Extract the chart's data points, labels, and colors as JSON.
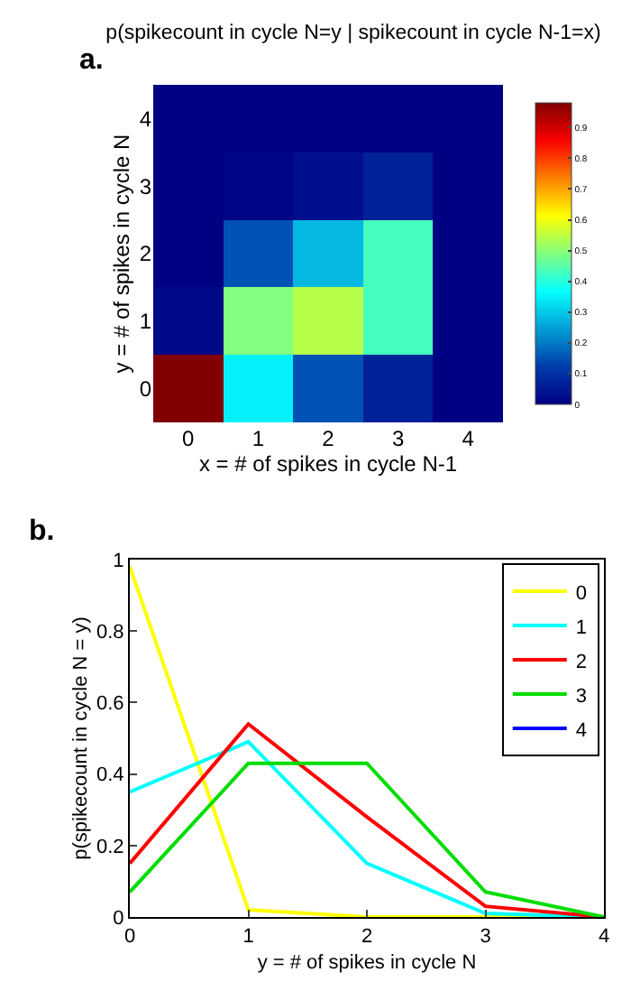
{
  "chart_data": [
    {
      "type": "heatmap",
      "title": "p(spikecount in cycle N=y | spikecount in cycle N-1=x)",
      "xlabel": "x = # of spikes in cycle N-1",
      "ylabel": "y = # of spikes in cycle N",
      "annotations": [
        "a."
      ],
      "categories": [
        "0",
        "1",
        "2",
        "3",
        "4"
      ],
      "y_categories": [
        "4",
        "3",
        "2",
        "1",
        "0"
      ],
      "cells": [
        [
          0,
          0,
          0,
          0,
          0
        ],
        [
          0,
          0.01,
          0.03,
          0.07,
          0
        ],
        [
          0,
          0.15,
          0.28,
          0.43,
          0
        ],
        [
          0.02,
          0.49,
          0.54,
          0.43,
          0
        ],
        [
          0.98,
          0.35,
          0.15,
          0.07,
          0
        ]
      ],
      "clim": [
        0,
        0.98
      ],
      "cticks": [
        0,
        0.1,
        0.2,
        0.3,
        0.4,
        0.5,
        0.6,
        0.7,
        0.8,
        0.9
      ]
    },
    {
      "type": "line",
      "xlabel": "y = # of spikes in cycle N",
      "ylabel": "p(spikecount in cycle N = y)",
      "annotations": [
        "b."
      ],
      "x": [
        0,
        1,
        2,
        3,
        4
      ],
      "xlim": [
        0,
        4
      ],
      "xticks": [
        0,
        1,
        2,
        3,
        4
      ],
      "ylim": [
        0,
        1
      ],
      "yticks": [
        0,
        0.2,
        0.4,
        0.6,
        0.8,
        1
      ],
      "grid": false,
      "legend": "top right",
      "series": [
        {
          "name": "0",
          "color": "#ffff00",
          "values": [
            0.98,
            0.02,
            0,
            0,
            0
          ]
        },
        {
          "name": "1",
          "color": "#00ffff",
          "values": [
            0.35,
            0.49,
            0.15,
            0.01,
            0
          ]
        },
        {
          "name": "2",
          "color": "#ff0000",
          "values": [
            0.15,
            0.54,
            0.28,
            0.03,
            0
          ]
        },
        {
          "name": "3",
          "color": "#00dd00",
          "values": [
            0.07,
            0.43,
            0.43,
            0.07,
            0
          ]
        },
        {
          "name": "4",
          "color": "#0000ff",
          "values": [
            null,
            null,
            null,
            null,
            null
          ]
        }
      ]
    }
  ]
}
